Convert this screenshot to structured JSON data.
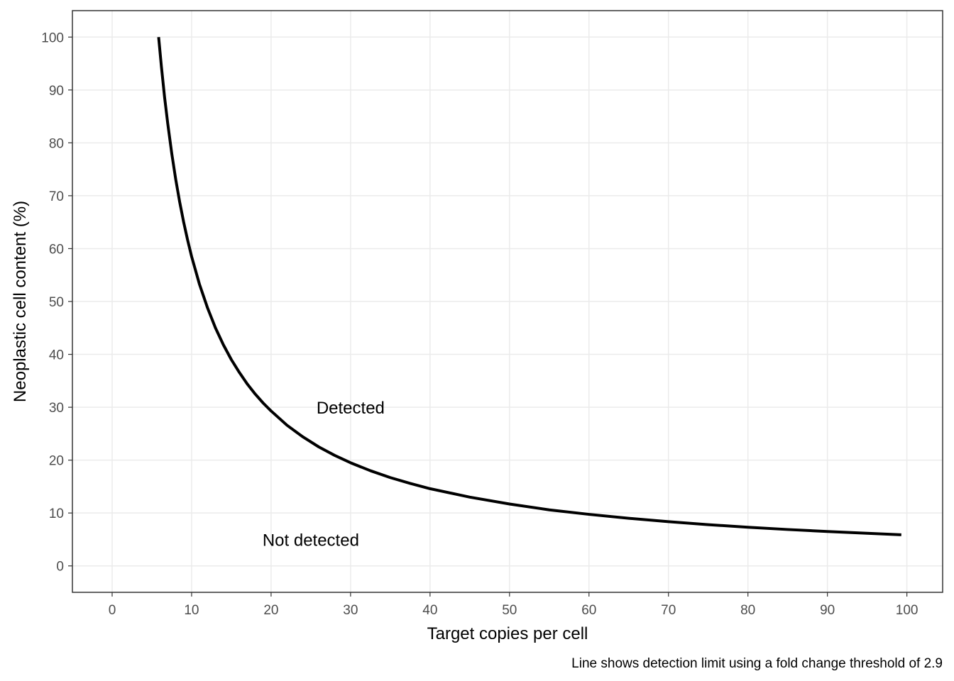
{
  "chart_data": {
    "type": "line",
    "xlabel": "Target copies per cell",
    "ylabel": "Neoplastic cell content (%)",
    "caption": "Line shows detection limit using a fold change threshold of 2.9",
    "xlim": [
      -5,
      104.5
    ],
    "ylim": [
      -5,
      105
    ],
    "x_ticks": [
      0,
      10,
      20,
      30,
      40,
      50,
      60,
      70,
      80,
      90,
      100
    ],
    "y_ticks": [
      0,
      10,
      20,
      30,
      40,
      50,
      60,
      70,
      80,
      90,
      100
    ],
    "grid": true,
    "line_color": "#000000",
    "series": [
      {
        "x": [
          5.85,
          6.2,
          6.6,
          7,
          7.5,
          8,
          8.5,
          9,
          9.5,
          10,
          11,
          12,
          13,
          14,
          15,
          16,
          17,
          18,
          19,
          20,
          22,
          24,
          26,
          28,
          30,
          32.5,
          35,
          37.5,
          40,
          45,
          50,
          55,
          60,
          65,
          70,
          75,
          80,
          85,
          90,
          95,
          99.3
        ],
        "y": [
          100,
          94.4,
          88.6,
          83.6,
          78,
          73.1,
          68.8,
          65,
          61.6,
          58.5,
          53.2,
          48.8,
          45,
          41.8,
          39,
          36.6,
          34.4,
          32.5,
          30.8,
          29.3,
          26.6,
          24.4,
          22.5,
          20.9,
          19.5,
          18,
          16.7,
          15.6,
          14.6,
          13,
          11.7,
          10.6,
          9.75,
          9,
          8.36,
          7.8,
          7.31,
          6.88,
          6.5,
          6.16,
          5.89
        ]
      }
    ],
    "annotations": [
      {
        "text": "Detected",
        "x": 30,
        "y": 30
      },
      {
        "text": "Not detected",
        "x": 25,
        "y": 5
      }
    ]
  }
}
